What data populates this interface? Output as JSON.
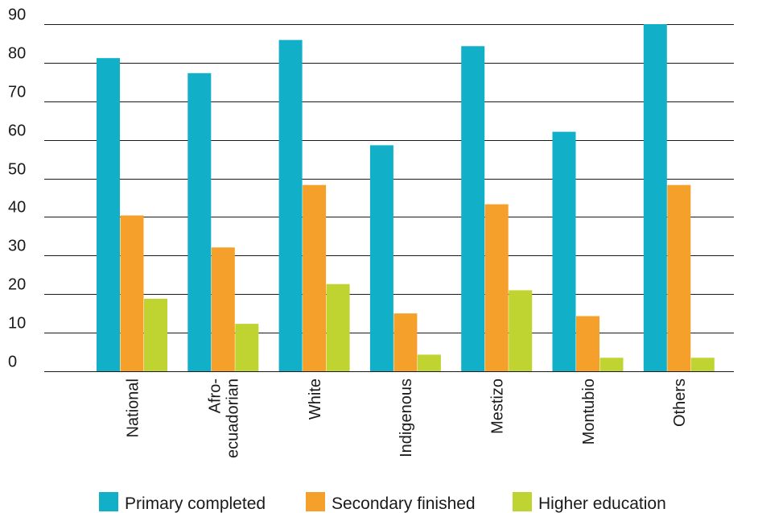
{
  "chart_data": {
    "type": "bar",
    "title": "",
    "xlabel": "",
    "ylabel": "",
    "ylim": [
      0,
      90
    ],
    "yticks": [
      0,
      10,
      20,
      30,
      40,
      50,
      60,
      70,
      80,
      90
    ],
    "grid": true,
    "legend_position": "bottom",
    "categories": [
      [
        "National"
      ],
      [
        "Afro-",
        "ecuadorian"
      ],
      [
        "White"
      ],
      [
        "Indigenous"
      ],
      [
        "Mestizo"
      ],
      [
        "Montubio"
      ],
      [
        "Others"
      ]
    ],
    "series": [
      {
        "name": "Primary completed",
        "color": "#12b0c8",
        "values": [
          81.2,
          77.3,
          85.9,
          58.6,
          84.3,
          62.1,
          90.0
        ]
      },
      {
        "name": "Secondary finished",
        "color": "#f5a02a",
        "values": [
          40.4,
          32.1,
          48.3,
          15.0,
          43.3,
          14.3,
          48.3
        ]
      },
      {
        "name": "Higher education",
        "color": "#bfd431",
        "values": [
          18.8,
          12.3,
          22.6,
          4.3,
          21.0,
          3.5,
          3.5
        ]
      }
    ]
  }
}
